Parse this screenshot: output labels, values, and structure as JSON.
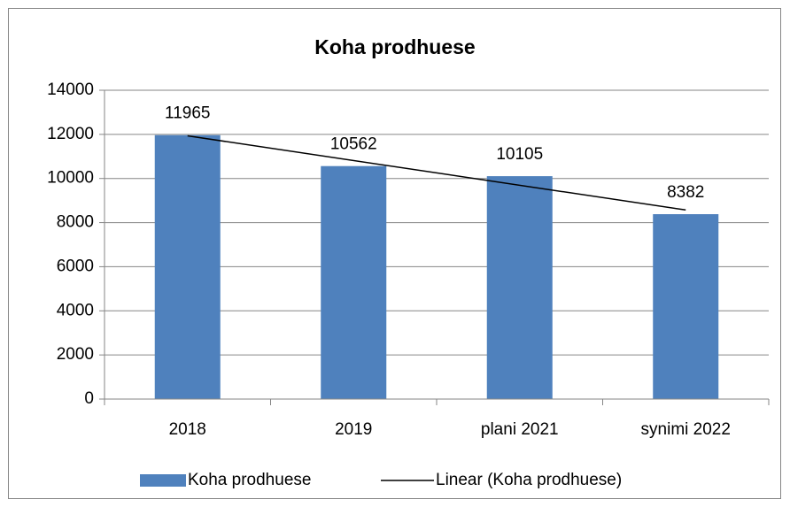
{
  "chart_data": {
    "type": "bar",
    "title": "Koha prodhuese",
    "categories": [
      "2018",
      "2019",
      "plani 2021",
      "synimi 2022"
    ],
    "series": [
      {
        "name": "Koha prodhuese",
        "color": "#4f81bd",
        "values": [
          11965,
          10562,
          10105,
          8382
        ]
      }
    ],
    "trendline": {
      "name": "Linear (Koha prodhuese)",
      "type": "linear",
      "color": "#000000"
    },
    "ylim": [
      0,
      14000
    ],
    "yticks": [
      0,
      2000,
      4000,
      6000,
      8000,
      10000,
      12000,
      14000
    ],
    "grid": true,
    "legend": "bottom"
  }
}
